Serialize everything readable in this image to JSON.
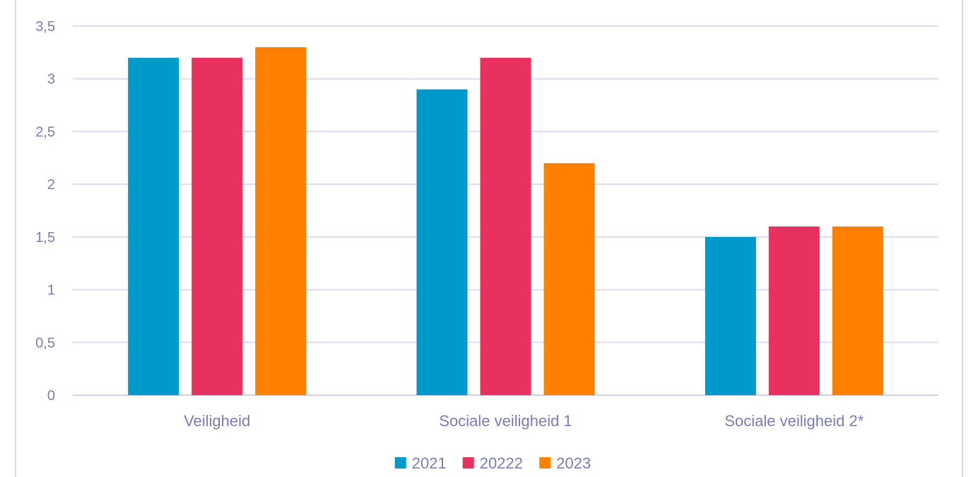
{
  "chart_data": {
    "type": "bar",
    "title": "",
    "xlabel": "",
    "ylabel": "",
    "categories": [
      "Veiligheid",
      "Sociale veiligheid 1",
      "Sociale veiligheid 2*"
    ],
    "series": [
      {
        "name": "2021",
        "values": [
          3.2,
          2.9,
          1.5
        ],
        "color": "#0099cc"
      },
      {
        "name": "20222",
        "values": [
          3.2,
          3.2,
          1.6
        ],
        "color": "#e8315f"
      },
      {
        "name": "2023",
        "values": [
          3.3,
          2.2,
          1.6
        ],
        "color": "#ff8000"
      }
    ],
    "ylim": [
      0,
      3.5
    ],
    "yticks": [
      0,
      0.5,
      1,
      1.5,
      2,
      2.5,
      3,
      3.5
    ],
    "ytick_labels": [
      "0",
      "0,5",
      "1",
      "1,5",
      "2",
      "2,5",
      "3",
      "3,5"
    ],
    "grid": true,
    "legend_position": "bottom"
  }
}
